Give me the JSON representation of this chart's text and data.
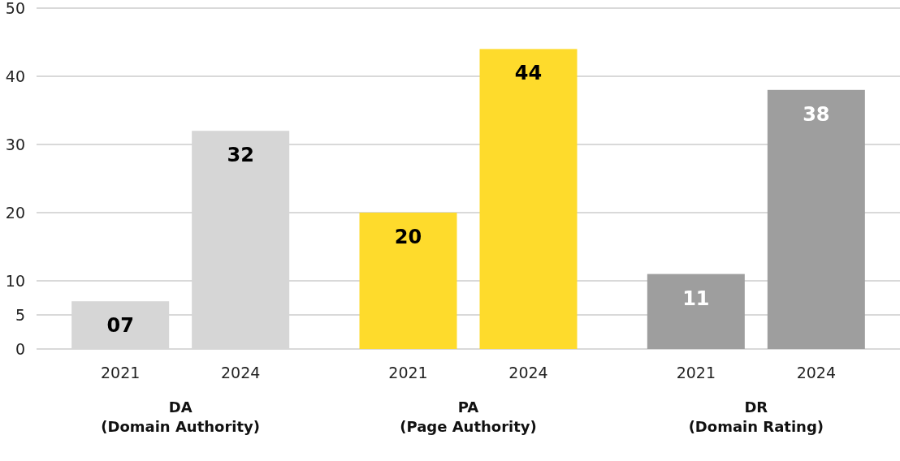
{
  "chart_data": {
    "type": "bar",
    "categories": [
      "2021",
      "2024",
      "2021",
      "2024",
      "2021",
      "2024"
    ],
    "values": [
      7,
      32,
      20,
      44,
      11,
      38
    ],
    "colors": [
      "#d6d6d6",
      "#d6d6d6",
      "#fedb2c",
      "#fedb2c",
      "#9e9e9e",
      "#9e9e9e"
    ],
    "value_labels": [
      "07",
      "32",
      "20",
      "44",
      "11",
      "38"
    ],
    "ylim": [
      0,
      50
    ],
    "yticks": [
      0,
      5,
      10,
      20,
      30,
      40,
      50
    ],
    "grid": "y",
    "annotations": [
      "DA\n(Domain Authority)",
      "PA\n(Page Authority)",
      "DR\n(Domain Rating)"
    ]
  }
}
